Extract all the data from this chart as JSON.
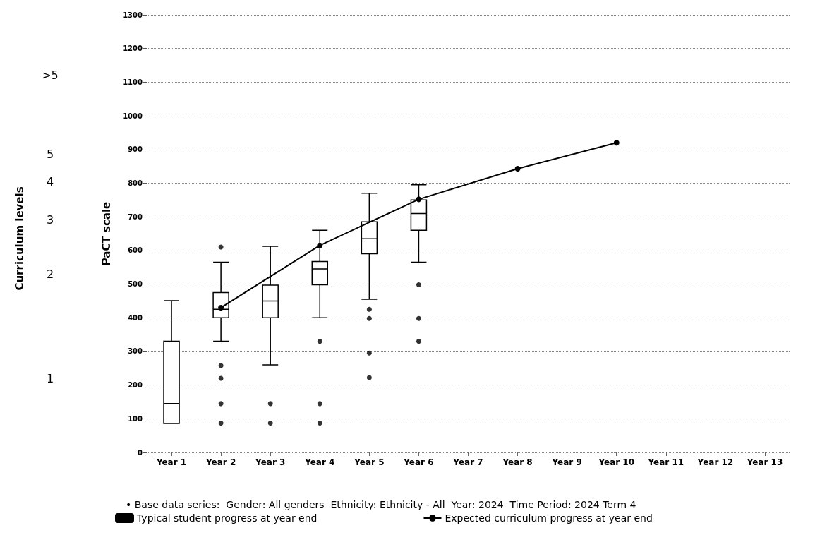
{
  "chart_data": {
    "type": "box",
    "categories": [
      "Year 1",
      "Year 2",
      "Year 3",
      "Year 4",
      "Year 5",
      "Year 6",
      "Year 7",
      "Year 8",
      "Year 9",
      "Year 10",
      "Year 11",
      "Year 12",
      "Year 13"
    ],
    "ylabel": "PaCT scale",
    "ylim": [
      0,
      1300
    ],
    "yticks": [
      0,
      100,
      200,
      300,
      400,
      500,
      600,
      700,
      800,
      900,
      1000,
      1100,
      1200,
      1300
    ],
    "grid": "y",
    "legend": "bottom",
    "annotations": [
      "• Base data series:  Gender: All genders  Ethnicity: Ethnicity - All  Year: 2024  Time Period: 2024 Term 4",
      "Curriculum levels",
      "1",
      "2",
      "3",
      "4",
      "5",
      ">5"
    ],
    "series": [
      {
        "name": "Typical student progress at year end",
        "color": "#000000",
        "boxes": [
          {
            "low": 86,
            "q1": 86,
            "median": 145,
            "q3": 330,
            "high": 451
          },
          {
            "low": 330,
            "q1": 400,
            "median": 425,
            "q3": 475,
            "high": 565,
            "outliers": [
              610,
              258,
              220,
              145,
              87
            ]
          },
          {
            "low": 260,
            "q1": 400,
            "median": 450,
            "q3": 497,
            "high": 612,
            "outliers": [
              145,
              87
            ]
          },
          {
            "low": 400,
            "q1": 498,
            "median": 545,
            "q3": 567,
            "high": 660,
            "outliers": [
              330,
              145,
              87
            ]
          },
          {
            "low": 455,
            "q1": 590,
            "median": 635,
            "q3": 685,
            "high": 770,
            "outliers": [
              425,
              398,
              295,
              222
            ]
          },
          {
            "low": 565,
            "q1": 660,
            "median": 710,
            "q3": 750,
            "high": 795,
            "outliers": [
              498,
              398,
              330
            ]
          },
          null,
          null,
          null,
          null,
          null,
          null,
          null
        ]
      },
      {
        "type": "line",
        "name": "Expected curriculum progress at year end",
        "color": "#000000",
        "marker": "circle",
        "values": [
          null,
          430,
          null,
          615,
          null,
          752,
          null,
          843,
          null,
          920,
          null,
          null,
          null
        ]
      }
    ]
  }
}
